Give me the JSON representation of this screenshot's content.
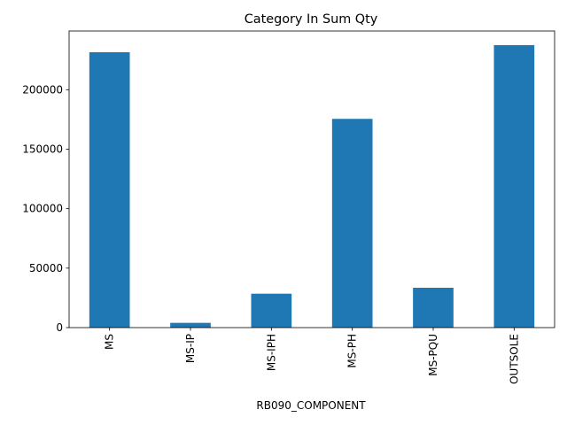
{
  "chart_data": {
    "type": "bar",
    "title": "Category In Sum Qty",
    "xlabel": "RB090_COMPONENT",
    "ylabel": "",
    "categories": [
      "MS",
      "MS-IP",
      "MS-IPH",
      "MS-PH",
      "MS-PQU",
      "OUTSOLE"
    ],
    "values": [
      231500,
      4000,
      28500,
      175500,
      33500,
      237500
    ],
    "ylim": [
      0,
      249375
    ],
    "yticks": [
      0,
      50000,
      100000,
      150000,
      200000
    ],
    "ytick_labels": [
      "0",
      "50000",
      "100000",
      "150000",
      "200000"
    ],
    "grid": false,
    "legend": "none",
    "bar_color": "#1f77b4",
    "tick_label_rotation": "vertical"
  }
}
